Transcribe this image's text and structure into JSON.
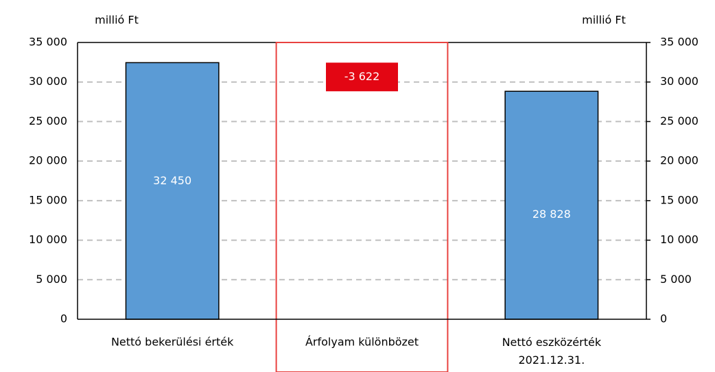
{
  "chart_data": {
    "type": "waterfall",
    "y_label": "millió Ft",
    "y2_label": "millió Ft",
    "categories": [
      "Nettó bekerülési érték",
      "Árfolyam különbözet",
      "Nettó eszközérték\n2021.12.31."
    ],
    "values": [
      32450,
      -3622,
      28828
    ],
    "value_labels": [
      "32 450",
      "-3 622",
      "28 828"
    ],
    "color": "#5b9bd5",
    "negative_color": "#e30613",
    "highlight_color": "#e8413f",
    "ylim": [
      0,
      35000
    ],
    "yticks": [
      0,
      {
        "value": 5000,
        "label": "5 000"
      },
      {
        "value": 10000,
        "label": "10 000"
      },
      {
        "value": 15000,
        "label": "15 000"
      },
      {
        "value": 20000,
        "label": "20 000"
      },
      {
        "value": 25000,
        "label": "25 000"
      },
      {
        "value": 30000,
        "label": "30 000"
      },
      {
        "value": 35000,
        "label": "35 000"
      }
    ],
    "y2lim": [
      0,
      35000
    ],
    "y2ticks": [
      0,
      {
        "value": 5000,
        "label": "5 000"
      },
      {
        "value": 10000,
        "label": "10 000"
      },
      {
        "value": 15000,
        "label": "15 000"
      },
      {
        "value": 20000,
        "label": "20 000"
      },
      {
        "value": 25000,
        "label": "25 000"
      },
      {
        "value": 30000,
        "label": "30 000"
      },
      {
        "value": 35000,
        "label": "35 000"
      }
    ],
    "grid": true
  }
}
